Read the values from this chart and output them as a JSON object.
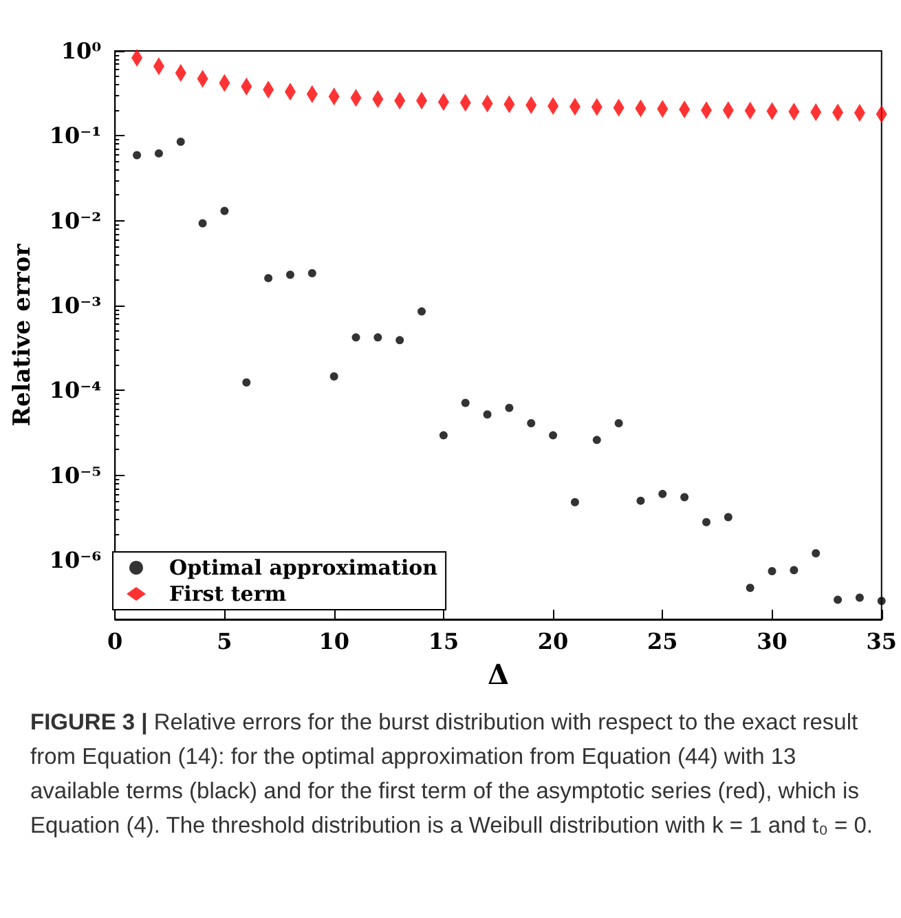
{
  "chart_data": {
    "type": "scatter",
    "xlabel": "Δ",
    "ylabel": "Relative error",
    "x": [
      1,
      2,
      3,
      4,
      5,
      6,
      7,
      8,
      9,
      10,
      11,
      12,
      13,
      14,
      15,
      16,
      17,
      18,
      19,
      20,
      21,
      22,
      23,
      24,
      25,
      26,
      27,
      28,
      29,
      30,
      31,
      32,
      33,
      34,
      35
    ],
    "series": [
      {
        "name": "Optimal approximation",
        "color": "#000000",
        "marker": "circle",
        "values": [
          0.059,
          0.062,
          0.085,
          0.0093,
          0.013,
          0.000124,
          0.0021,
          0.0023,
          0.0024,
          0.000146,
          0.00042,
          0.00042,
          0.00039,
          0.00085,
          2.95e-05,
          7.1e-05,
          5.2e-05,
          6.2e-05,
          4.1e-05,
          2.95e-05,
          4.8e-06,
          2.6e-05,
          4.1e-05,
          5e-06,
          6e-06,
          5.5e-06,
          2.8e-06,
          3.2e-06,
          4.7e-07,
          7.4e-07,
          7.6e-07,
          1.2e-06,
          3.4e-07,
          3.6e-07,
          3.3e-07
        ]
      },
      {
        "name": "First term",
        "color": "#ff0000",
        "marker": "diamond",
        "values": [
          0.83,
          0.66,
          0.55,
          0.47,
          0.42,
          0.38,
          0.35,
          0.33,
          0.31,
          0.29,
          0.28,
          0.27,
          0.26,
          0.26,
          0.25,
          0.245,
          0.24,
          0.235,
          0.23,
          0.225,
          0.22,
          0.218,
          0.214,
          0.21,
          0.207,
          0.204,
          0.2,
          0.2,
          0.198,
          0.195,
          0.192,
          0.19,
          0.188,
          0.186,
          0.18
        ]
      }
    ],
    "log": "y",
    "xlim": [
      0,
      35
    ],
    "xticks": [
      0,
      5,
      10,
      15,
      20,
      25,
      30,
      35
    ],
    "ylim": [
      2e-07,
      1
    ],
    "yticks": [
      {
        "value": 1,
        "label": "10⁰"
      },
      {
        "value": 0.1,
        "label": "10⁻¹"
      },
      {
        "value": 0.01,
        "label": "10⁻²"
      },
      {
        "value": 0.001,
        "label": "10⁻³"
      },
      {
        "value": 0.0001,
        "label": "10⁻⁴"
      },
      {
        "value": 1e-05,
        "label": "10⁻⁵"
      },
      {
        "value": 1e-06,
        "label": "10⁻⁶"
      }
    ],
    "grid": false,
    "legend": "bottom left",
    "annotations": [
      "FIGURE 3 | Relative errors for the burst distribution with respect to the exact result from Equation (14): for the optimal approximation from Equation (44) with 13 available terms (black) and for the first term of the asymptotic series (red), which is Equation (4). The threshold distribution is a Weibull distribution with k = 1 and t₀ = 0."
    ]
  }
}
